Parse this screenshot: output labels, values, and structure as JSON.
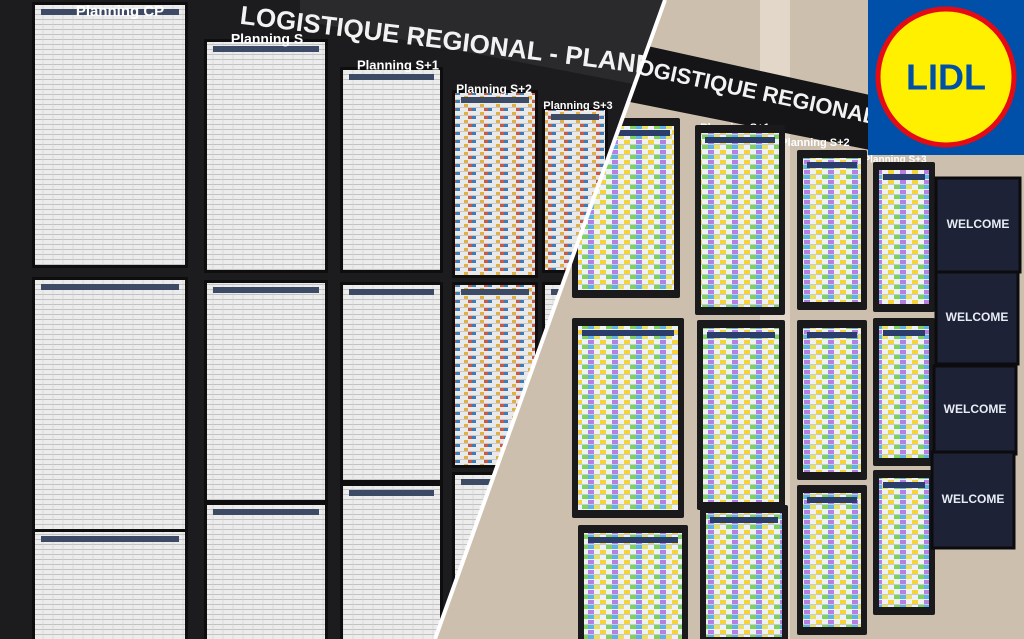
{
  "left_panel": {
    "banner": "LOGISTIQUE REGIONAL - PLANNING",
    "columns": [
      "Planning CP",
      "Planning S",
      "Planning S+1",
      "Planning S+2",
      "Planning S+3"
    ]
  },
  "right_panel": {
    "banner": "LOGISTIQUE REGIONAL",
    "columns": [
      "Planning S+1",
      "Planning S+2",
      "Planning S+3"
    ],
    "screens": [
      "WELCOME",
      "WELCOME",
      "WELCOME",
      "WELCOME"
    ]
  },
  "logo": {
    "text": "LIDL"
  }
}
